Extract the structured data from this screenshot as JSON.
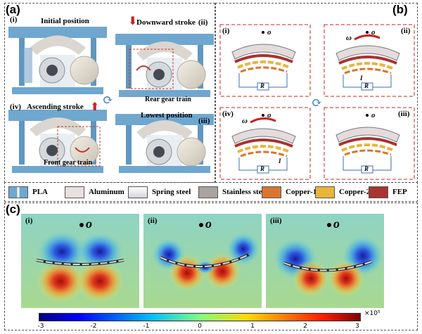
{
  "panel_a": {
    "tag": "(a)",
    "states": [
      {
        "numeral": "(i)",
        "label": "Initial position"
      },
      {
        "numeral": "(ii)",
        "label": "Downward stroke"
      },
      {
        "numeral": "(iii)",
        "label": "Lowest position"
      },
      {
        "numeral": "(iv)",
        "label": "Ascending stroke"
      }
    ],
    "callouts": {
      "rear": "Rear gear train",
      "front": "Front gear train"
    }
  },
  "panel_b": {
    "tag": "(b)",
    "numerals": [
      "(i)",
      "(ii)",
      "(iii)",
      "(iv)"
    ],
    "o_label": "o",
    "omega": "ω",
    "resistor": "R",
    "current": "I"
  },
  "legend": [
    {
      "label": "PLA",
      "color": "#6fa8d3"
    },
    {
      "label": "Aluminum",
      "color": "#eadfdc"
    },
    {
      "label": "Spring steel",
      "color": "#e9e9ef"
    },
    {
      "label": "Stainless steel",
      "color": "#a8a39f"
    },
    {
      "label": "Copper-1",
      "color": "#d9752e"
    },
    {
      "label": "Copper-2",
      "color": "#e8b53b"
    },
    {
      "label": "FEP",
      "color": "#a8332f"
    }
  ],
  "panel_c": {
    "tag": "(c)",
    "numerals": [
      "(i)",
      "(ii)",
      "(iii)"
    ],
    "o_label": "o"
  },
  "colorbar": {
    "ticks": [
      "-3",
      "-2",
      "-1",
      "0",
      "1",
      "2",
      "3"
    ],
    "multiplier": "×10⁵"
  }
}
